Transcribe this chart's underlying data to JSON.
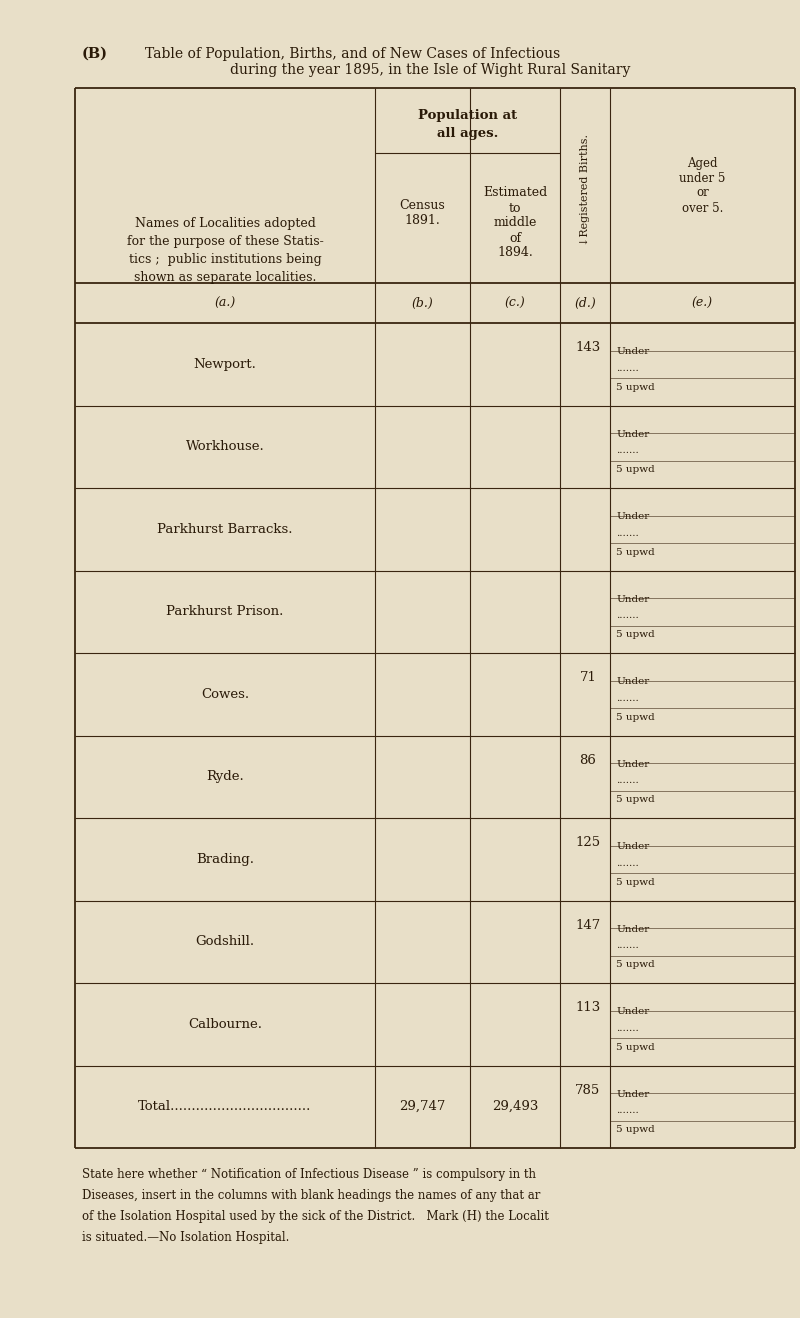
{
  "bg_color": "#E8DFC8",
  "paper_color": "#EDE5D2",
  "line_color": "#3a2510",
  "text_color": "#2a1a08",
  "title_b": "(B)",
  "title1": "Table of Population, Births, and of New Cases of Infectious",
  "title2": "during the year 1895, in the Isle of Wight Rural Sanitary",
  "rows": [
    {
      "name": "Newport.",
      "census": "",
      "estimated": "",
      "births": "143"
    },
    {
      "name": "Workhouse.",
      "census": "",
      "estimated": "",
      "births": ""
    },
    {
      "name": "Parkhurst Barracks.",
      "census": "",
      "estimated": "",
      "births": ""
    },
    {
      "name": "Parkhurst Prison.",
      "census": "",
      "estimated": "",
      "births": ""
    },
    {
      "name": "Cowes.",
      "census": "",
      "estimated": "",
      "births": "71"
    },
    {
      "name": "Ryde.",
      "census": "",
      "estimated": "",
      "births": "86"
    },
    {
      "name": "Brading.",
      "census": "",
      "estimated": "",
      "births": "125"
    },
    {
      "name": "Godshill.",
      "census": "",
      "estimated": "",
      "births": "147"
    },
    {
      "name": "Calbourne.",
      "census": "",
      "estimated": "",
      "births": "113"
    },
    {
      "name": "Total.................................",
      "census": "29,747",
      "estimated": "29,493",
      "births": "785"
    }
  ],
  "footer_lines": [
    "State here whether “ Notification of Infectious Disease ” is compulsory in th",
    "Diseases, insert in the columns with blank headings the names of any that ar",
    "of the Isolation Hospital used by the sick of the District.   Mark (H) the Localit",
    "is situated.—No Isolation Hospital."
  ]
}
